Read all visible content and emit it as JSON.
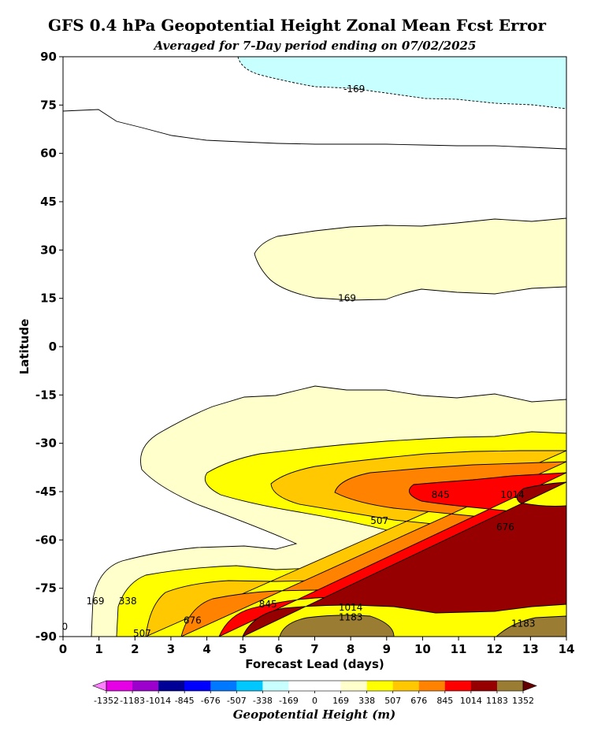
{
  "chart_data": {
    "type": "contour",
    "title": "GFS 0.4 hPa Geopotential Height Zonal Mean Fcst Error",
    "subtitle": "Averaged for 7-Day period ending on 07/02/2025",
    "xlabel": "Forecast Lead (days)",
    "ylabel": "Latitude",
    "xlim": [
      0,
      14
    ],
    "ylim": [
      -90,
      90
    ],
    "x_ticks": [
      "0",
      "1",
      "2",
      "3",
      "4",
      "5",
      "6",
      "7",
      "8",
      "9",
      "10",
      "11",
      "12",
      "13",
      "14"
    ],
    "y_ticks": [
      "90",
      "75",
      "60",
      "45",
      "30",
      "15",
      "0",
      "-15",
      "-30",
      "-45",
      "-60",
      "-75",
      "-90"
    ],
    "colorbar": {
      "label": "Geopotential Height (m)",
      "levels": [
        "-1352",
        "-1183",
        "-1014",
        "-845",
        "-676",
        "-507",
        "-338",
        "-169",
        "0",
        "169",
        "338",
        "507",
        "676",
        "845",
        "1014",
        "1183",
        "1352"
      ],
      "colors": [
        "#e600e6",
        "#9b00cc",
        "#000096",
        "#0000ff",
        "#0078ff",
        "#00c8ff",
        "#c8ffff",
        "#ffffff",
        "#ffffff",
        "#ffffcc",
        "#ffff00",
        "#ffc800",
        "#ff8200",
        "#ff0000",
        "#960000",
        "#9a7d32"
      ],
      "under_color": "#ff80ff",
      "over_color": "#640000"
    },
    "contour_labels": [
      {
        "text": "-169",
        "day": 8.1,
        "lat": 80
      },
      {
        "text": "169",
        "day": 7.9,
        "lat": 15
      },
      {
        "text": "845",
        "day": 10.5,
        "lat": -46
      },
      {
        "text": "1014",
        "day": 12.5,
        "lat": -46
      },
      {
        "text": "507",
        "day": 8.8,
        "lat": -54
      },
      {
        "text": "676",
        "day": 12.3,
        "lat": -56
      },
      {
        "text": "169",
        "day": 0.9,
        "lat": -79
      },
      {
        "text": "338",
        "day": 1.8,
        "lat": -79
      },
      {
        "text": "676",
        "day": 3.6,
        "lat": -85
      },
      {
        "text": "845",
        "day": 5.7,
        "lat": -80
      },
      {
        "text": "1014",
        "day": 8.0,
        "lat": -81
      },
      {
        "text": "1183",
        "day": 8.0,
        "lat": -84
      },
      {
        "text": "1183",
        "day": 12.8,
        "lat": -86
      },
      {
        "text": "0",
        "day": 0.05,
        "lat": -87
      },
      {
        "text": "507",
        "day": 2.2,
        "lat": -89
      }
    ]
  }
}
